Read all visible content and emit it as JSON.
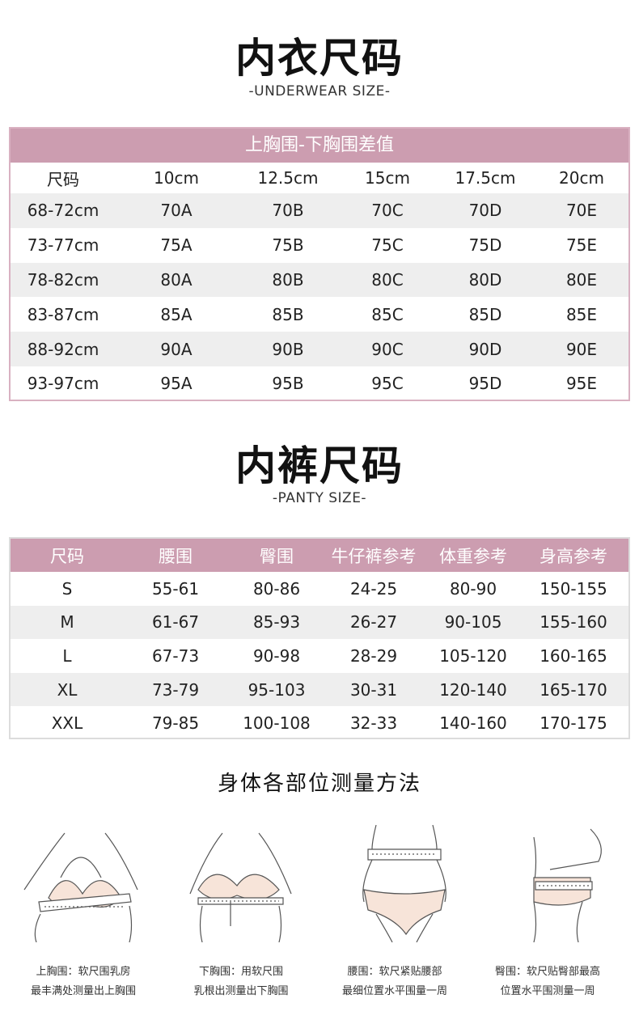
{
  "bra": {
    "title": "内衣尺码",
    "subtitle": "-UNDERWEAR SIZE-",
    "band": "上胸围-下胸围差值",
    "headers": [
      "尺码",
      "10cm",
      "12.5cm",
      "15cm",
      "17.5cm",
      "20cm"
    ],
    "rows": [
      [
        "68-72cm",
        "70A",
        "70B",
        "70C",
        "70D",
        "70E"
      ],
      [
        "73-77cm",
        "75A",
        "75B",
        "75C",
        "75D",
        "75E"
      ],
      [
        "78-82cm",
        "80A",
        "80B",
        "80C",
        "80D",
        "80E"
      ],
      [
        "83-87cm",
        "85A",
        "85B",
        "85C",
        "85D",
        "85E"
      ],
      [
        "88-92cm",
        "90A",
        "90B",
        "90C",
        "90D",
        "90E"
      ],
      [
        "93-97cm",
        "95A",
        "95B",
        "95C",
        "95D",
        "95E"
      ]
    ]
  },
  "panty": {
    "title": "内裤尺码",
    "subtitle": "-PANTY SIZE-",
    "headers": [
      "尺码",
      "腰围",
      "臀围",
      "牛仔裤参考",
      "体重参考",
      "身高参考"
    ],
    "rows": [
      [
        "S",
        "55-61",
        "80-86",
        "24-25",
        "80-90",
        "150-155"
      ],
      [
        "M",
        "61-67",
        "85-93",
        "26-27",
        "90-105",
        "155-160"
      ],
      [
        "L",
        "67-73",
        "90-98",
        "28-29",
        "105-120",
        "160-165"
      ],
      [
        "XL",
        "73-79",
        "95-103",
        "30-31",
        "120-140",
        "165-170"
      ],
      [
        "XXL",
        "79-85",
        "100-108",
        "32-33",
        "140-160",
        "170-175"
      ]
    ]
  },
  "measure": {
    "title": "身体各部位测量方法",
    "items": [
      {
        "line1": "上胸围：软尺围乳房",
        "line2": "最丰满处测量出上胸围"
      },
      {
        "line1": "下胸围：用软尺围",
        "line2": "乳根出测量出下胸围"
      },
      {
        "line1": "腰围：软尺紧贴腰部",
        "line2": "最细位置水平围量一周"
      },
      {
        "line1": "臀围：软尺贴臀部最高",
        "line2": "位置水平围测量一周"
      }
    ]
  },
  "colors": {
    "accent": "#cc9db0",
    "stripe": "#eeeeee"
  }
}
